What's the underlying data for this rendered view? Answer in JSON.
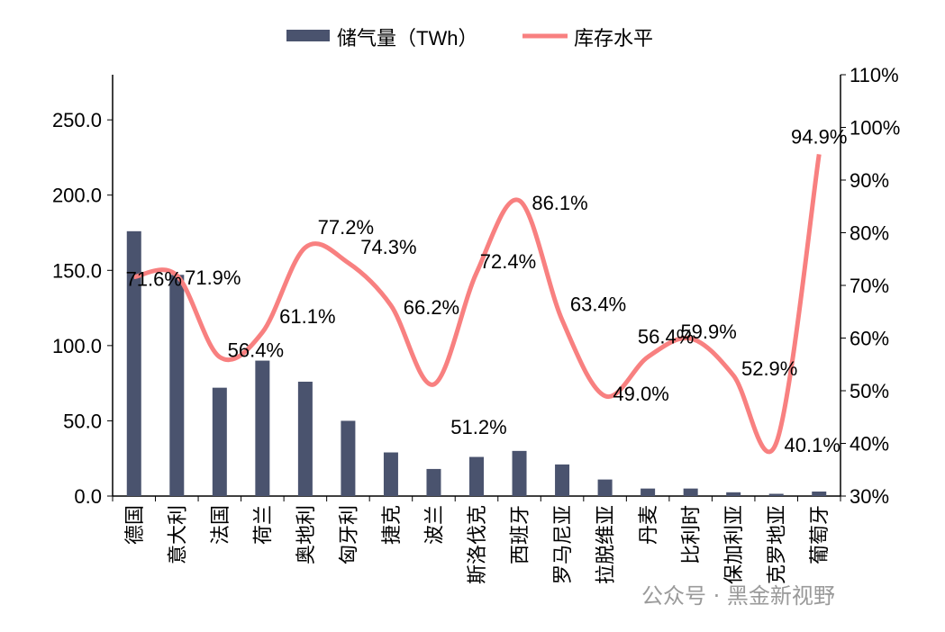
{
  "chart_data": {
    "type": "bar+line",
    "categories": [
      "德国",
      "意大利",
      "法国",
      "荷兰",
      "奥地利",
      "匈牙利",
      "捷克",
      "波兰",
      "斯洛伐克",
      "西班牙",
      "罗马尼亚",
      "拉脱维亚",
      "丹麦",
      "比利时",
      "保加利亚",
      "克罗地亚",
      "葡萄牙"
    ],
    "series": [
      {
        "name": "储气量（TWh）",
        "type": "bar",
        "axis": "left",
        "color": "#4a536e",
        "values": [
          176,
          147,
          72,
          90,
          76,
          50,
          29,
          18,
          26,
          30,
          21,
          11,
          5,
          5,
          2.5,
          1.5,
          3
        ]
      },
      {
        "name": "库存水平",
        "type": "line",
        "axis": "right",
        "color": "#f88080",
        "values": [
          71.6,
          71.9,
          56.4,
          61.1,
          77.2,
          74.3,
          66.2,
          51.2,
          72.4,
          86.1,
          63.4,
          49.0,
          56.4,
          59.9,
          52.9,
          40.1,
          94.9
        ],
        "labels": [
          "71.6%",
          "71.9%",
          "56.4%",
          "61.1%",
          "77.2%",
          "74.3%",
          "66.2%",
          "51.2%",
          "72.4%",
          "86.1%",
          "63.4%",
          "49.0%",
          "56.4%",
          "59.9%",
          "52.9%",
          "40.1%",
          "94.9%"
        ]
      }
    ],
    "left_axis": {
      "range": [
        0,
        280
      ],
      "ticks": [
        "0.0",
        "50.0",
        "100.0",
        "150.0",
        "200.0",
        "250.0"
      ]
    },
    "right_axis": {
      "range": [
        30,
        110
      ],
      "ticks": [
        "30%",
        "40%",
        "50%",
        "60%",
        "70%",
        "80%",
        "90%",
        "100%",
        "110%"
      ]
    },
    "legend": "top",
    "grid": false
  },
  "watermark": "公众号 · 黑金新视野"
}
